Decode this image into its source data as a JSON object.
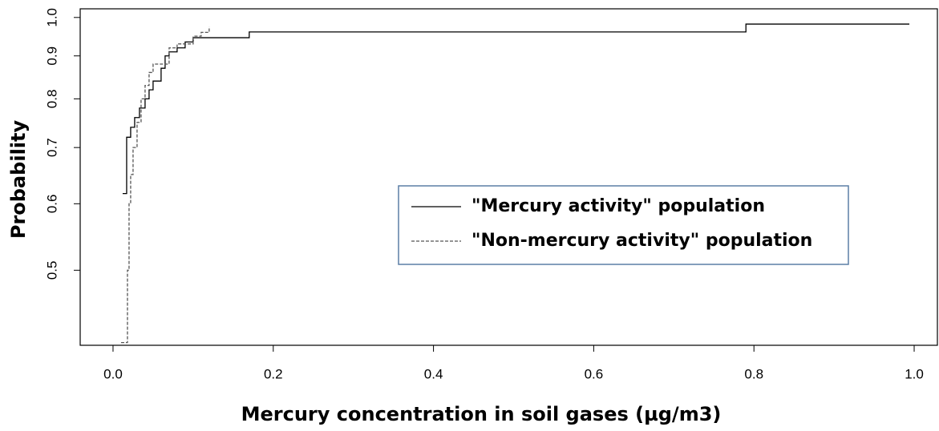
{
  "chart_data": {
    "type": "step",
    "step": "post",
    "xlabel": "Mercury concentration in soil gases (µg/m3)",
    "ylabel": "Probability",
    "xlim": [
      -0.041,
      1.029
    ],
    "ylim": [
      0.407,
      1.024
    ],
    "ylog": true,
    "xticks": [
      {
        "value": 0,
        "label": "0.0"
      },
      0.2,
      0.4,
      0.6,
      0.8,
      {
        "value": 1,
        "label": "1.0"
      }
    ],
    "yticks": [
      0.5,
      0.6,
      0.7,
      0.8,
      0.9,
      {
        "value": 1,
        "label": "1.0"
      }
    ],
    "legend_position": "center-right",
    "series": [
      {
        "name": "\"Mercury activity\" population",
        "color": "#000000",
        "dash": "solid",
        "x": [
          0.012,
          0.017,
          0.022,
          0.027,
          0.033,
          0.04,
          0.045,
          0.05,
          0.06,
          0.065,
          0.07,
          0.08,
          0.09,
          0.1,
          0.17,
          0.79,
          0.994
        ],
        "values": [
          0.617,
          0.72,
          0.74,
          0.76,
          0.78,
          0.8,
          0.82,
          0.84,
          0.87,
          0.9,
          0.91,
          0.92,
          0.935,
          0.946,
          0.961,
          0.982,
          0.982
        ]
      },
      {
        "name": "\"Non-mercury activity\" population",
        "color": "#555555",
        "dash": "dashed",
        "x": [
          0.01,
          0.018,
          0.02,
          0.022,
          0.025,
          0.03,
          0.035,
          0.04,
          0.045,
          0.05,
          0.065,
          0.07,
          0.08,
          0.1,
          0.11,
          0.12
        ],
        "values": [
          0.41,
          0.5,
          0.6,
          0.65,
          0.7,
          0.75,
          0.8,
          0.83,
          0.86,
          0.88,
          0.88,
          0.92,
          0.93,
          0.95,
          0.96,
          0.975
        ]
      }
    ]
  }
}
